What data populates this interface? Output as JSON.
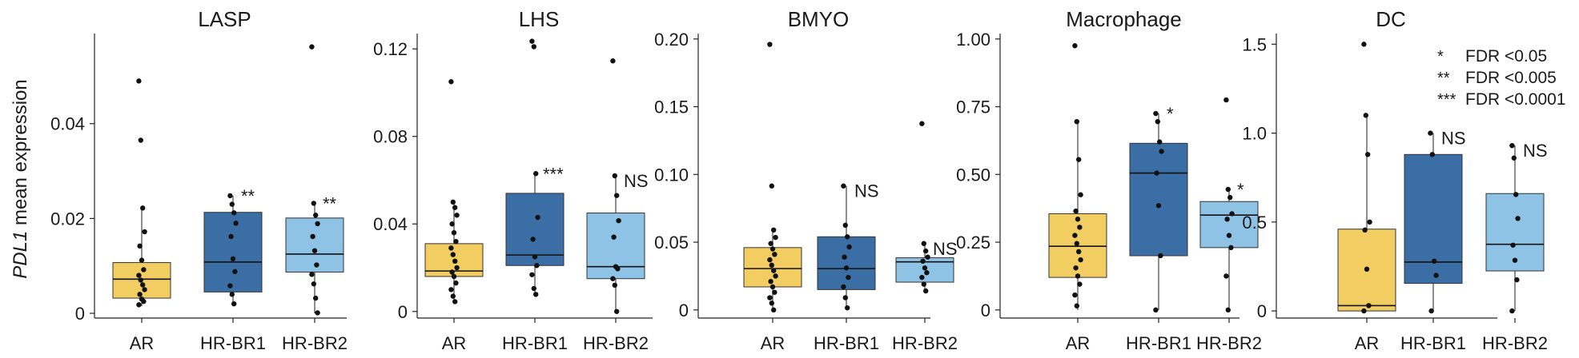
{
  "y_axis_label": {
    "gene": "PDL1",
    "rest": " mean expression"
  },
  "legend": [
    {
      "stars": "*",
      "text": "FDR <0.05"
    },
    {
      "stars": "**",
      "text": "FDR <0.005"
    },
    {
      "stars": "***",
      "text": "FDR <0.0001"
    }
  ],
  "colors": {
    "AR": "#f2cd62",
    "HR-BR1": "#3b6ea5",
    "HR-BR2": "#8fc3e6",
    "point": "#111111"
  },
  "chart_data": [
    {
      "type": "box",
      "title": "LASP",
      "categories": [
        "AR",
        "HR-BR1",
        "HR-BR2"
      ],
      "ylim": [
        -0.001,
        0.059
      ],
      "yticks": [
        0,
        0.02,
        0.04
      ],
      "ytick_labels": [
        "0",
        "0.02",
        "0.04"
      ],
      "boxes": [
        {
          "q1": 0.0032,
          "median": 0.0072,
          "q3": 0.0107,
          "whisker_low": 0.0015,
          "whisker_high": 0.022,
          "points": [
            0.049,
            0.0365,
            0.0222,
            0.0172,
            0.0142,
            0.0112,
            0.0092,
            0.008,
            0.007,
            0.006,
            0.005,
            0.004,
            0.003,
            0.0025,
            0.0018
          ],
          "significance": ""
        },
        {
          "q1": 0.0045,
          "median": 0.0108,
          "q3": 0.0213,
          "whisker_low": 0.0015,
          "whisker_high": 0.0248,
          "points": [
            0.0248,
            0.023,
            0.0212,
            0.019,
            0.0162,
            0.0115,
            0.0088,
            0.0058,
            0.004,
            0.002
          ],
          "significance": "**"
        },
        {
          "q1": 0.0087,
          "median": 0.0125,
          "q3": 0.0201,
          "whisker_low": 0.0,
          "whisker_high": 0.0232,
          "points": [
            0.0562,
            0.0232,
            0.0207,
            0.0189,
            0.0162,
            0.0132,
            0.0102,
            0.0082,
            0.0062,
            0.0032,
            0.0001
          ],
          "significance": "**"
        }
      ]
    },
    {
      "type": "box",
      "title": "LHS",
      "categories": [
        "AR",
        "HR-BR1",
        "HR-BR2"
      ],
      "ylim": [
        -0.003,
        0.127
      ],
      "yticks": [
        0,
        0.04,
        0.08,
        0.12
      ],
      "ytick_labels": [
        "0",
        "0.04",
        "0.08",
        "0.12"
      ],
      "boxes": [
        {
          "q1": 0.016,
          "median": 0.0185,
          "q3": 0.031,
          "whisker_low": 0.0045,
          "whisker_high": 0.05,
          "points": [
            0.105,
            0.05,
            0.0475,
            0.044,
            0.04,
            0.036,
            0.032,
            0.029,
            0.026,
            0.023,
            0.02,
            0.018,
            0.016,
            0.013,
            0.01,
            0.007,
            0.0045
          ],
          "significance": ""
        },
        {
          "q1": 0.021,
          "median": 0.0258,
          "q3": 0.054,
          "whisker_low": 0.0078,
          "whisker_high": 0.063,
          "points": [
            0.1235,
            0.121,
            0.063,
            0.043,
            0.033,
            0.025,
            0.021,
            0.0168,
            0.0105,
            0.0078
          ],
          "significance": "***"
        },
        {
          "q1": 0.015,
          "median": 0.0205,
          "q3": 0.045,
          "whisker_low": 0.0,
          "whisker_high": 0.062,
          "points": [
            0.1145,
            0.062,
            0.053,
            0.0415,
            0.034,
            0.0205,
            0.0195,
            0.015,
            0.012,
            0.0
          ],
          "significance": "NS"
        }
      ]
    },
    {
      "type": "box",
      "title": "BMYO",
      "categories": [
        "AR",
        "HR-BR1",
        "HR-BR2"
      ],
      "ylim": [
        -0.006,
        0.204
      ],
      "yticks": [
        0,
        0.05,
        0.1,
        0.15,
        0.2
      ],
      "ytick_labels": [
        "0",
        "0.05",
        "0.10",
        "0.15",
        "0.20"
      ],
      "boxes": [
        {
          "q1": 0.017,
          "median": 0.0305,
          "q3": 0.046,
          "whisker_low": 0.0,
          "whisker_high": 0.059,
          "points": [
            0.196,
            0.0915,
            0.059,
            0.0535,
            0.049,
            0.045,
            0.041,
            0.037,
            0.033,
            0.029,
            0.025,
            0.021,
            0.017,
            0.013,
            0.009,
            0.005,
            0.0
          ],
          "significance": ""
        },
        {
          "q1": 0.015,
          "median": 0.0305,
          "q3": 0.054,
          "whisker_low": 0.0015,
          "whisker_high": 0.0915,
          "points": [
            0.0915,
            0.0625,
            0.054,
            0.0465,
            0.039,
            0.031,
            0.024,
            0.017,
            0.009,
            0.0015
          ],
          "significance": "NS"
        },
        {
          "q1": 0.0205,
          "median": 0.0355,
          "q3": 0.0385,
          "whisker_low": 0.014,
          "whisker_high": 0.049,
          "points": [
            0.1375,
            0.049,
            0.0435,
            0.039,
            0.036,
            0.031,
            0.0275,
            0.024,
            0.019,
            0.014
          ],
          "significance": "NS"
        }
      ]
    },
    {
      "type": "box",
      "title": "Macrophage",
      "categories": [
        "AR",
        "HR-BR1",
        "HR-BR2"
      ],
      "ylim": [
        -0.03,
        1.02
      ],
      "yticks": [
        0,
        0.25,
        0.5,
        0.75,
        1.0
      ],
      "ytick_labels": [
        "0",
        "0.25",
        "0.50",
        "0.75",
        "1.00"
      ],
      "boxes": [
        {
          "q1": 0.12,
          "median": 0.235,
          "q3": 0.355,
          "whisker_low": 0.0,
          "whisker_high": 0.695,
          "points": [
            0.975,
            0.695,
            0.555,
            0.425,
            0.365,
            0.335,
            0.305,
            0.275,
            0.245,
            0.215,
            0.185,
            0.155,
            0.125,
            0.095,
            0.055,
            0.015
          ],
          "significance": ""
        },
        {
          "q1": 0.2,
          "median": 0.505,
          "q3": 0.615,
          "whisker_low": 0.0,
          "whisker_high": 0.725,
          "points": [
            0.725,
            0.695,
            0.62,
            0.585,
            0.505,
            0.385,
            0.2,
            0.0
          ],
          "significance": "*"
        },
        {
          "q1": 0.23,
          "median": 0.35,
          "q3": 0.4,
          "whisker_low": 0.0,
          "whisker_high": 0.445,
          "points": [
            0.775,
            0.445,
            0.415,
            0.355,
            0.335,
            0.275,
            0.23,
            0.125,
            0.0
          ],
          "significance": "*"
        }
      ]
    },
    {
      "type": "box",
      "title": "DC",
      "categories": [
        "AR",
        "HR-BR1",
        "HR-BR2"
      ],
      "ylim": [
        -0.04,
        1.56
      ],
      "yticks": [
        0,
        0.5,
        1.0,
        1.5
      ],
      "ytick_labels": [
        "0",
        "0.5",
        "1.0",
        "1.5"
      ],
      "boxes": [
        {
          "q1": 0.0,
          "median": 0.03,
          "q3": 0.46,
          "whisker_low": 0.0,
          "whisker_high": 1.1,
          "points": [
            1.5,
            1.1,
            0.88,
            0.5,
            0.455,
            0.235,
            0.03,
            0.0
          ],
          "significance": ""
        },
        {
          "q1": 0.155,
          "median": 0.275,
          "q3": 0.88,
          "whisker_low": 0.0,
          "whisker_high": 1.0,
          "points": [
            1.0,
            0.88,
            0.28,
            0.2,
            0.0
          ],
          "significance": "NS"
        },
        {
          "q1": 0.225,
          "median": 0.375,
          "q3": 0.66,
          "whisker_low": 0.0,
          "whisker_high": 0.93,
          "points": [
            0.93,
            0.86,
            0.655,
            0.52,
            0.37,
            0.285,
            0.175,
            0.0
          ],
          "significance": "NS"
        }
      ]
    }
  ]
}
